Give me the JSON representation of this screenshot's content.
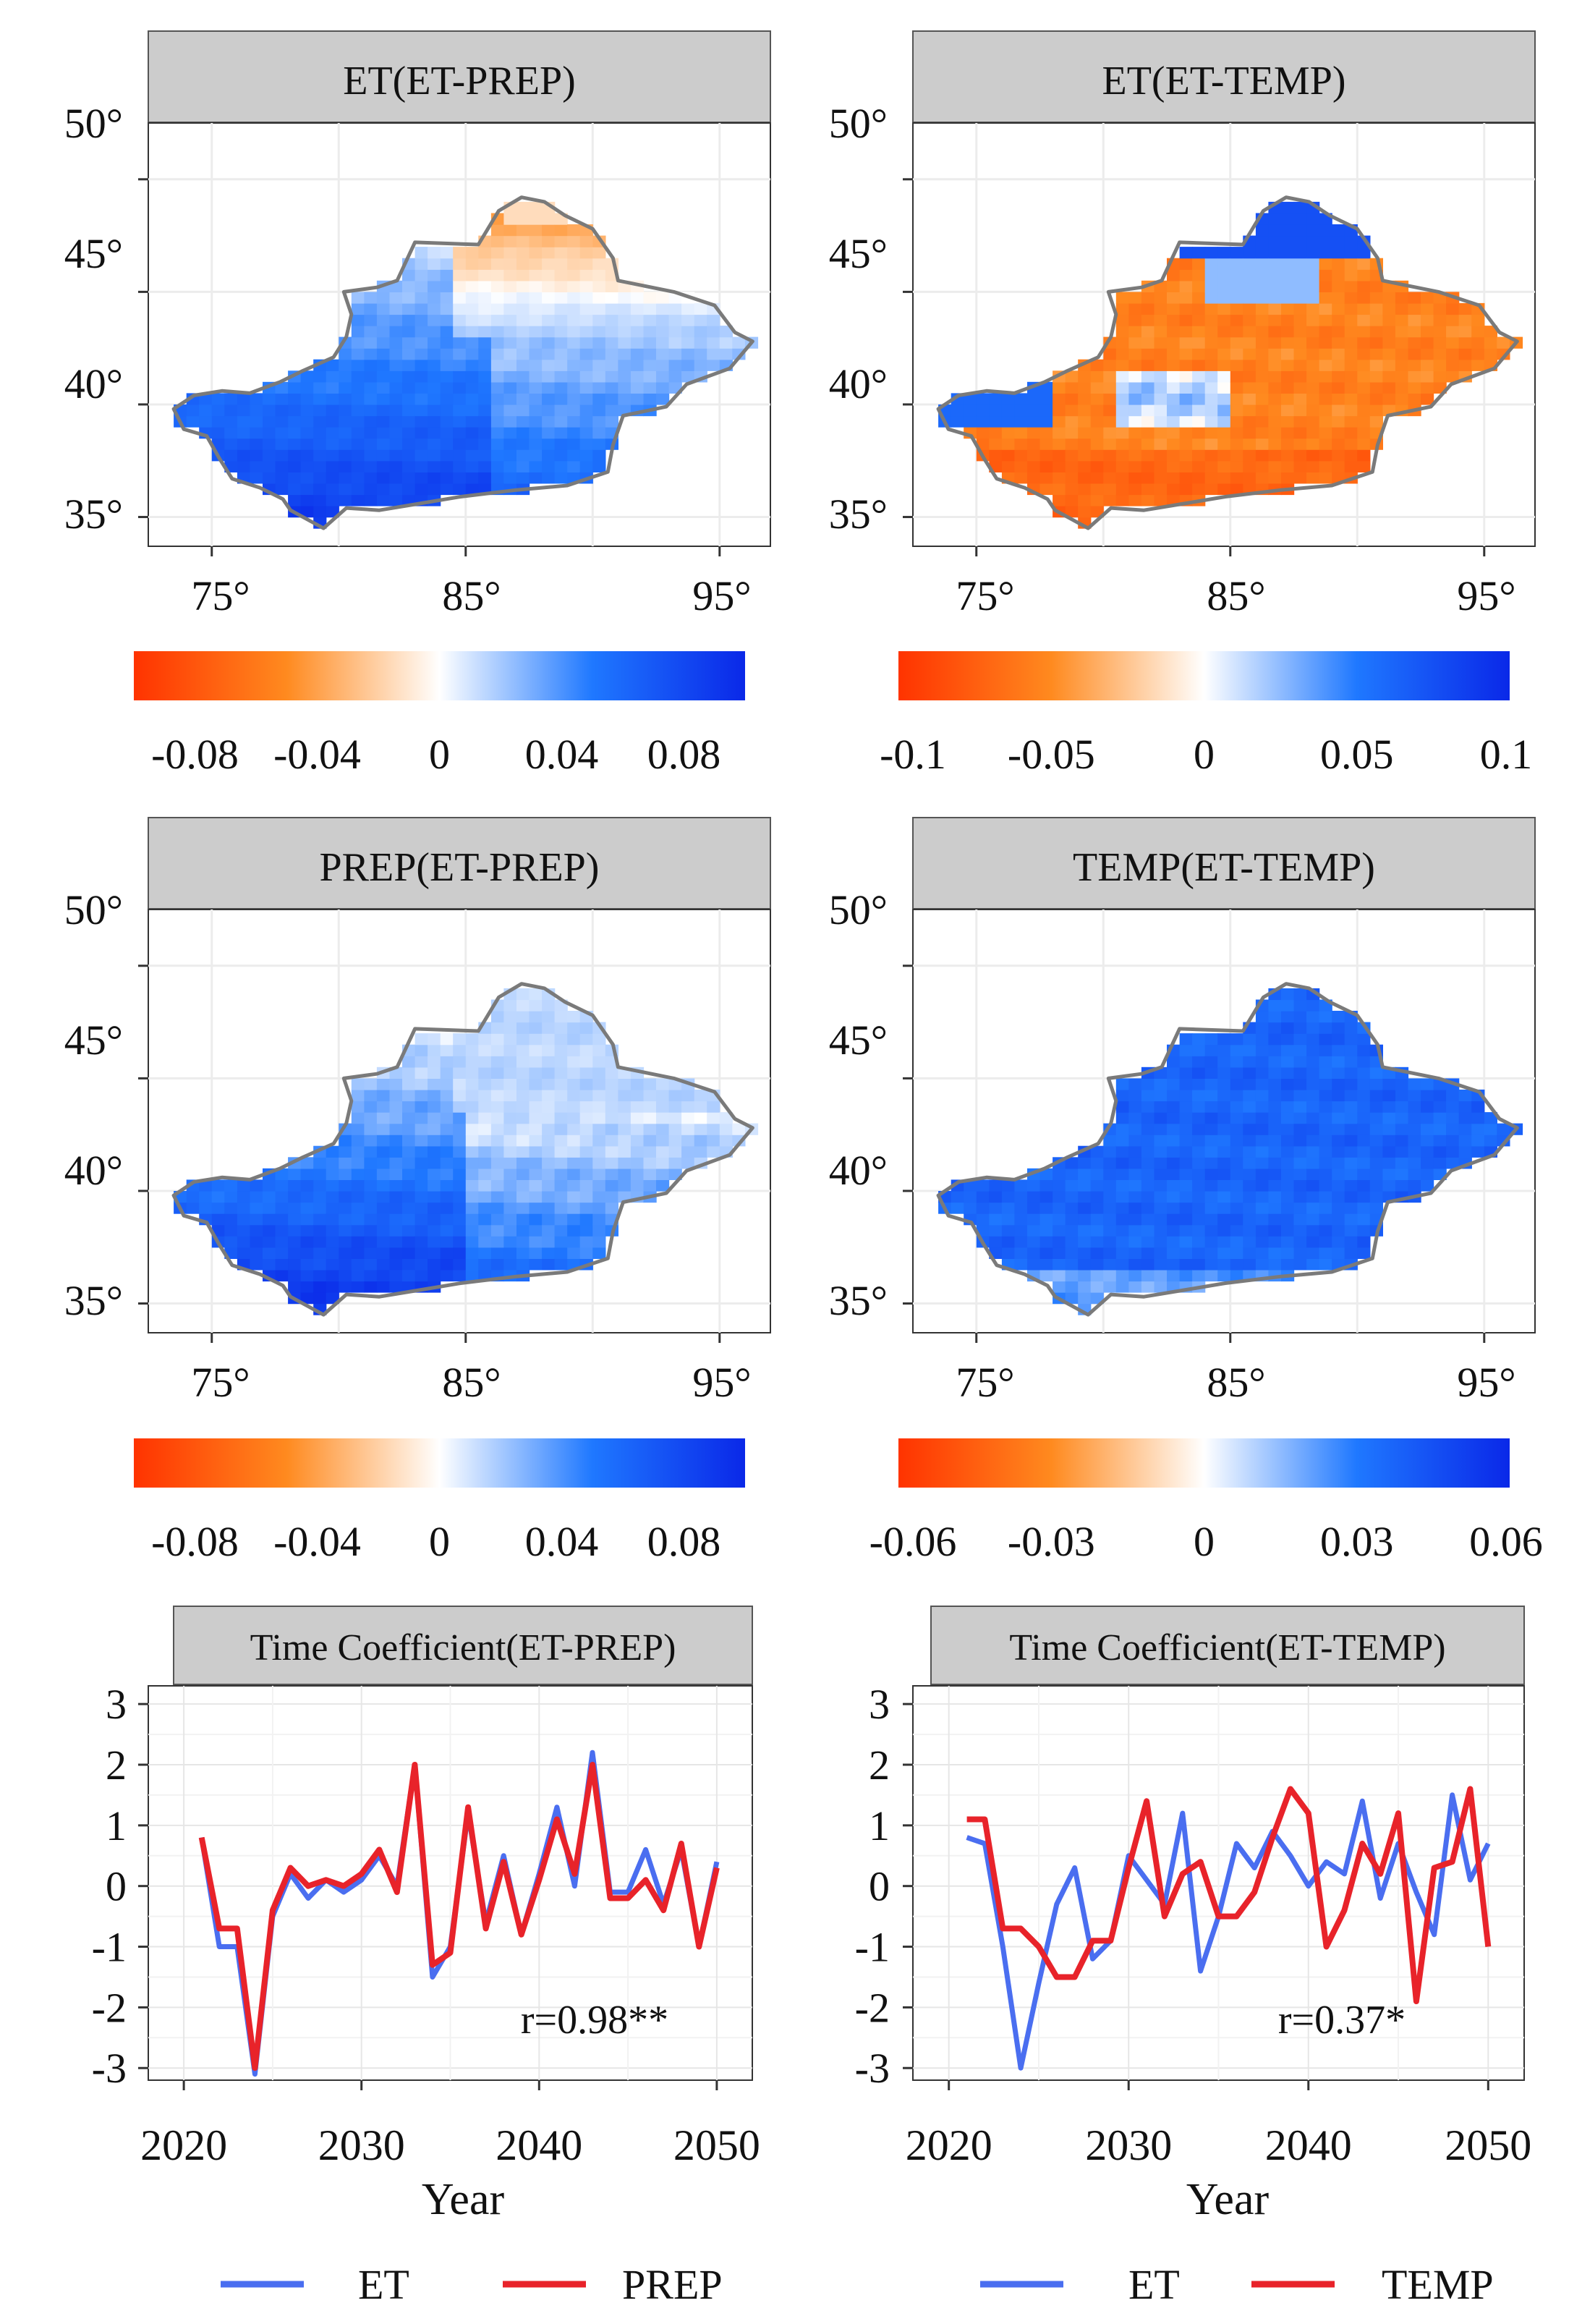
{
  "colors": {
    "neg_strong": "#ff3300",
    "neg_mid": "#ff8a1f",
    "neutral": "#ffffff",
    "pos_mid": "#1f78ff",
    "pos_strong": "#0a28e8",
    "et_line": "#4a6ef0",
    "other_line": "#e8232a",
    "strip": "#cccccc",
    "boundary": "#7a7a7a",
    "grid": "#ececec"
  },
  "maps": [
    {
      "title": "ET(ET-PREP)",
      "pattern": "et_prep",
      "lat_ticks": [
        "50°",
        "45°",
        "40°",
        "35°"
      ],
      "lon_ticks": [
        "75°",
        "85°",
        "95°"
      ],
      "colorbar": {
        "min": -0.1,
        "max": 0.1,
        "ticks": [
          "-0.08",
          "-0.04",
          "0",
          "0.04",
          "0.08"
        ],
        "tick_values": [
          -0.08,
          -0.04,
          0,
          0.04,
          0.08
        ]
      }
    },
    {
      "title": "ET(ET-TEMP)",
      "pattern": "et_temp",
      "lat_ticks": [
        "50°",
        "45°",
        "40°",
        "35°"
      ],
      "lon_ticks": [
        "75°",
        "85°",
        "95°"
      ],
      "colorbar": {
        "min": -0.1,
        "max": 0.1,
        "ticks": [
          "-0.1",
          "-0.05",
          "0",
          "0.05",
          "0.1"
        ],
        "tick_values": [
          -0.1,
          -0.05,
          0,
          0.05,
          0.1
        ]
      }
    },
    {
      "title": "PREP(ET-PREP)",
      "pattern": "prep",
      "lat_ticks": [
        "50°",
        "45°",
        "40°",
        "35°"
      ],
      "lon_ticks": [
        "75°",
        "85°",
        "95°"
      ],
      "colorbar": {
        "min": -0.1,
        "max": 0.1,
        "ticks": [
          "-0.08",
          "-0.04",
          "0",
          "0.04",
          "0.08"
        ],
        "tick_values": [
          -0.08,
          -0.04,
          0,
          0.04,
          0.08
        ]
      }
    },
    {
      "title": "TEMP(ET-TEMP)",
      "pattern": "temp",
      "lat_ticks": [
        "50°",
        "45°",
        "40°",
        "35°"
      ],
      "lon_ticks": [
        "75°",
        "85°",
        "95°"
      ],
      "colorbar": {
        "min": -0.06,
        "max": 0.06,
        "ticks": [
          "-0.06",
          "-0.03",
          "0",
          "0.03",
          "0.06"
        ],
        "tick_values": [
          -0.06,
          -0.03,
          0,
          0.03,
          0.06
        ]
      }
    }
  ],
  "chart_data": [
    {
      "type": "line",
      "title": "Time Coefficient(ET-PREP)",
      "xlabel": "Year",
      "ylabel": "",
      "x": [
        2021,
        2022,
        2023,
        2024,
        2025,
        2026,
        2027,
        2028,
        2029,
        2030,
        2031,
        2032,
        2033,
        2034,
        2035,
        2036,
        2037,
        2038,
        2039,
        2040,
        2041,
        2042,
        2043,
        2044,
        2045,
        2046,
        2047,
        2048,
        2049,
        2050
      ],
      "xlim": [
        2018,
        2052
      ],
      "ylim": [
        -3.2,
        3.3
      ],
      "x_ticks": [
        "2020",
        "2030",
        "2040",
        "2050"
      ],
      "y_ticks": [
        "3",
        "2",
        "1",
        "0",
        "-1",
        "-2",
        "-3"
      ],
      "series": [
        {
          "name": "ET",
          "values": [
            0.8,
            -1.0,
            -1.0,
            -3.1,
            -0.5,
            0.2,
            -0.2,
            0.1,
            -0.1,
            0.1,
            0.5,
            0.0,
            2.0,
            -1.5,
            -1.0,
            1.2,
            -0.6,
            0.5,
            -0.8,
            0.2,
            1.3,
            0.0,
            2.2,
            -0.1,
            -0.1,
            0.6,
            -0.3,
            0.6,
            -1.0,
            0.4
          ]
        },
        {
          "name": "PREP",
          "values": [
            0.8,
            -0.7,
            -0.7,
            -3.0,
            -0.4,
            0.3,
            0.0,
            0.1,
            0.0,
            0.2,
            0.6,
            -0.1,
            2.0,
            -1.3,
            -1.1,
            1.3,
            -0.7,
            0.4,
            -0.8,
            0.1,
            1.1,
            0.2,
            2.0,
            -0.2,
            -0.2,
            0.1,
            -0.4,
            0.7,
            -1.0,
            0.3
          ]
        }
      ],
      "annotation": "r=0.98**",
      "legend": {
        "position": "bottom",
        "entries": [
          "ET",
          "PREP"
        ]
      }
    },
    {
      "type": "line",
      "title": "Time Coefficient(ET-TEMP)",
      "xlabel": "Year",
      "ylabel": "",
      "x": [
        2021,
        2022,
        2023,
        2024,
        2025,
        2026,
        2027,
        2028,
        2029,
        2030,
        2031,
        2032,
        2033,
        2034,
        2035,
        2036,
        2037,
        2038,
        2039,
        2040,
        2041,
        2042,
        2043,
        2044,
        2045,
        2046,
        2047,
        2048,
        2049,
        2050
      ],
      "xlim": [
        2018,
        2052
      ],
      "ylim": [
        -3.2,
        3.3
      ],
      "x_ticks": [
        "2020",
        "2030",
        "2040",
        "2050"
      ],
      "y_ticks": [
        "3",
        "2",
        "1",
        "0",
        "-1",
        "-2",
        "-3"
      ],
      "series": [
        {
          "name": "ET",
          "values": [
            0.8,
            0.7,
            -1.0,
            -3.0,
            -1.6,
            -0.3,
            0.3,
            -1.2,
            -0.9,
            0.5,
            0.1,
            -0.3,
            1.2,
            -1.4,
            -0.5,
            0.7,
            0.3,
            0.9,
            0.5,
            0.0,
            0.4,
            0.2,
            1.4,
            -0.2,
            0.7,
            -0.1,
            -0.8,
            1.5,
            0.1,
            0.7
          ]
        },
        {
          "name": "TEMP",
          "values": [
            1.1,
            1.1,
            -0.7,
            -0.7,
            -1.0,
            -1.5,
            -1.5,
            -0.9,
            -0.9,
            0.3,
            1.4,
            -0.5,
            0.2,
            0.4,
            -0.5,
            -0.5,
            -0.1,
            0.8,
            1.6,
            1.2,
            -1.0,
            -0.4,
            0.7,
            0.2,
            1.2,
            -1.9,
            0.3,
            0.4,
            1.6,
            -1.0
          ]
        }
      ],
      "annotation": "r=0.37*",
      "legend": {
        "position": "bottom",
        "entries": [
          "ET",
          "TEMP"
        ]
      }
    }
  ]
}
